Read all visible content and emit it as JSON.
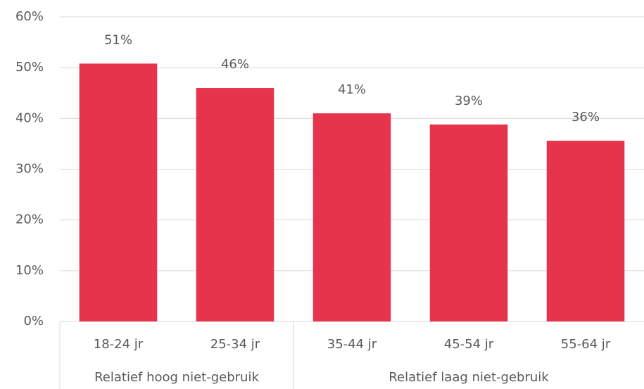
{
  "chart_data": {
    "type": "bar",
    "categories": [
      "18-24 jr",
      "25-34 jr",
      "35-44 jr",
      "45-54 jr",
      "55-64 jr"
    ],
    "values": [
      50.8,
      46.0,
      41.0,
      38.8,
      35.6
    ],
    "value_labels": [
      "51%",
      "46%",
      "41%",
      "39%",
      "36%"
    ],
    "color": "#e5344b",
    "groups": [
      {
        "label": "Relatief hoog niet-gebruik",
        "categories": [
          "18-24 jr",
          "25-34 jr"
        ]
      },
      {
        "label": "Relatief laag niet-gebruik",
        "categories": [
          "35-44 jr",
          "45-54 jr",
          "55-64 jr"
        ]
      }
    ],
    "ylim": [
      0,
      60
    ],
    "yticks": [
      {
        "value": 0,
        "label": "0%"
      },
      {
        "value": 10,
        "label": "10%"
      },
      {
        "value": 20,
        "label": "20%"
      },
      {
        "value": 30,
        "label": "30%"
      },
      {
        "value": 40,
        "label": "40%"
      },
      {
        "value": 50,
        "label": "50%"
      },
      {
        "value": 60,
        "label": "60%"
      }
    ],
    "grid": true
  }
}
